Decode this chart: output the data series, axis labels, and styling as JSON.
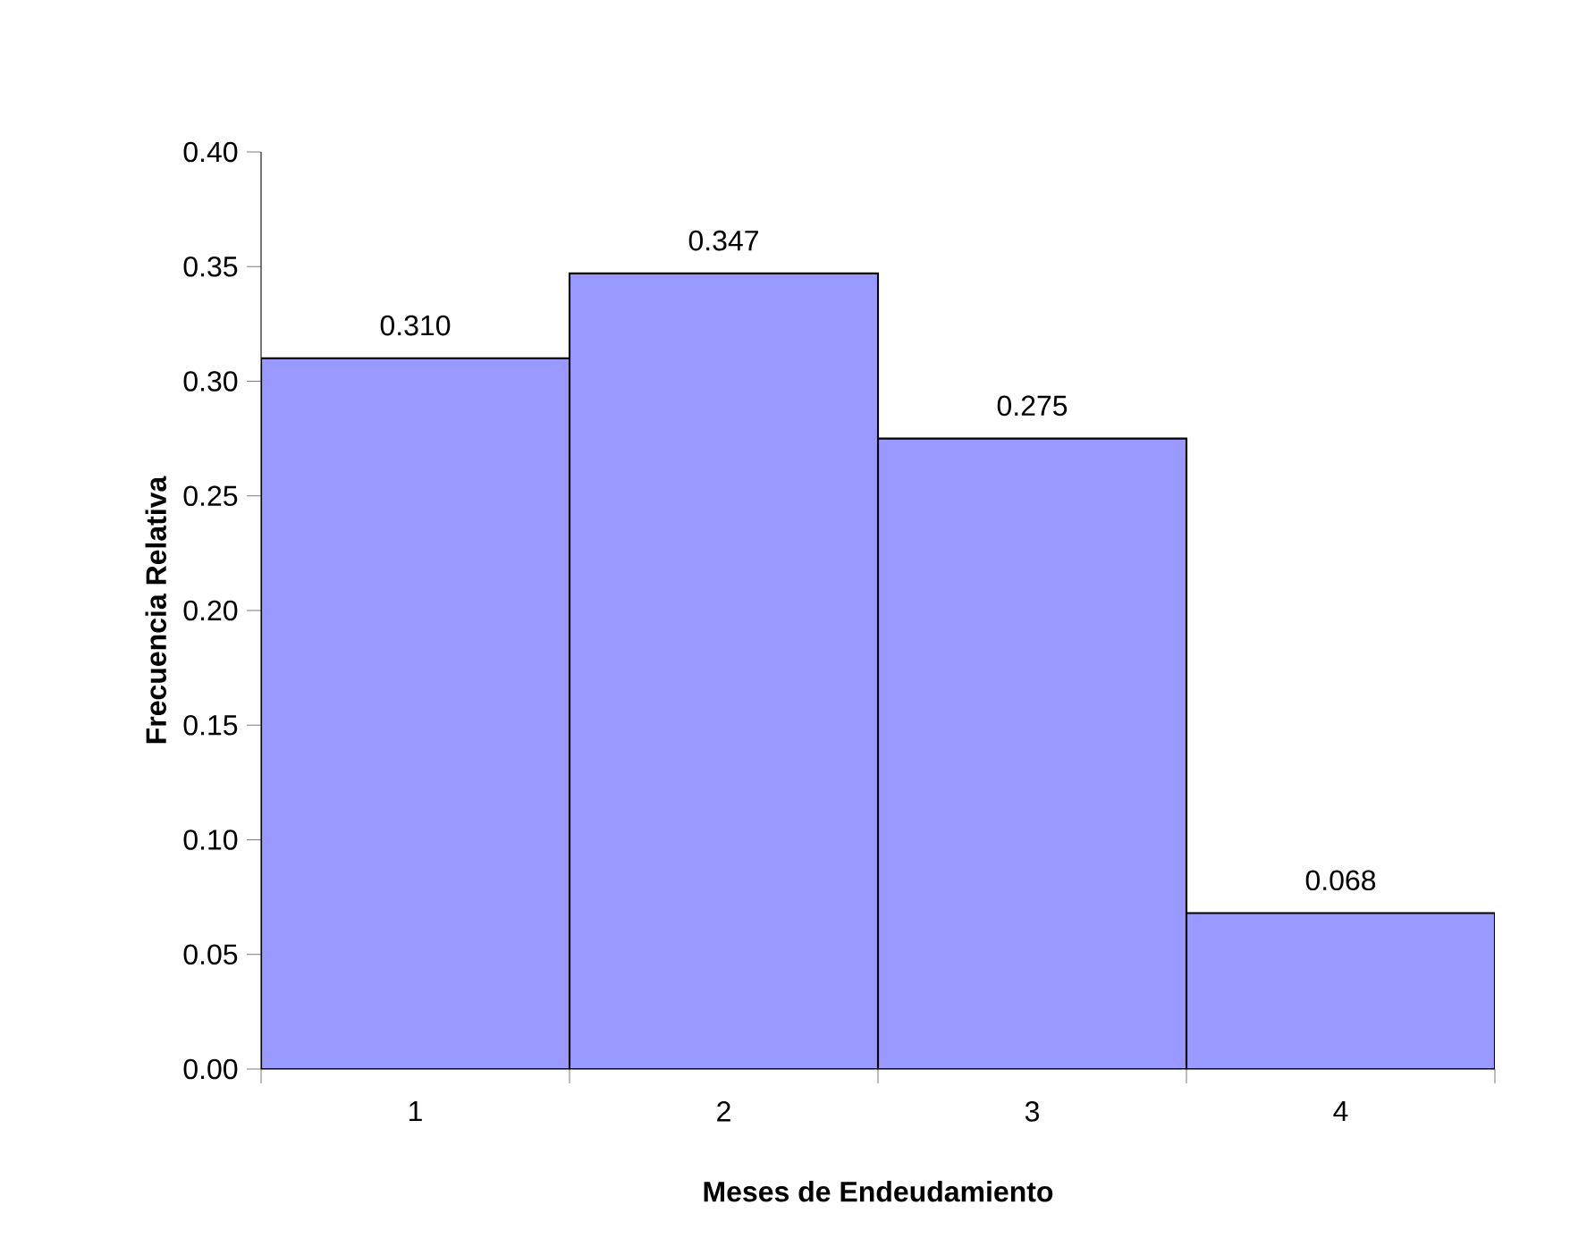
{
  "chart_data": {
    "type": "bar",
    "xlabel": "Meses de Endeudamiento",
    "ylabel": "Frecuencia Relativa",
    "categories": [
      "1",
      "2",
      "3",
      "4"
    ],
    "values": [
      0.31,
      0.347,
      0.275,
      0.068
    ],
    "value_labels": [
      "0.310",
      "0.347",
      "0.275",
      "0.068"
    ],
    "color": "#9999ff",
    "ylim": [
      0,
      0.4
    ],
    "yticks": [
      {
        "value": 0,
        "label": "0.00"
      },
      {
        "value": 0.05,
        "label": "0.05"
      },
      {
        "value": 0.1,
        "label": "0.10"
      },
      {
        "value": 0.15,
        "label": "0.15"
      },
      {
        "value": 0.2,
        "label": "0.20"
      },
      {
        "value": 0.25,
        "label": "0.25"
      },
      {
        "value": 0.3,
        "label": "0.30"
      },
      {
        "value": 0.35,
        "label": "0.35"
      },
      {
        "value": 0.4,
        "label": "0.40"
      }
    ]
  }
}
